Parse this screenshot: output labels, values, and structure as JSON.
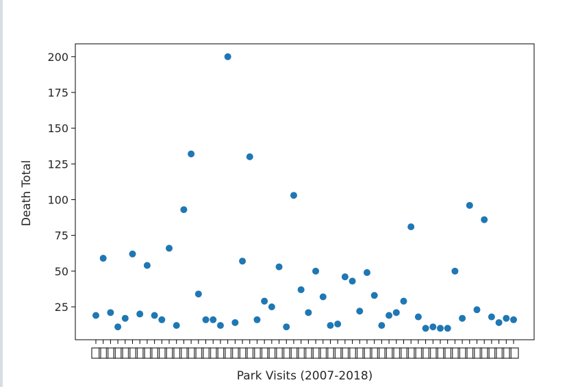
{
  "chart_data": {
    "type": "scatter",
    "xlabel": "Park Visits (2007-2018)",
    "ylabel": "Death Total",
    "ylim": [
      2,
      209
    ],
    "yticks": [
      25,
      50,
      75,
      100,
      125,
      150,
      175,
      200
    ],
    "grid": false,
    "color": "#1f77b4",
    "x_tick_labels_note": "x tick labels are overlapping and illegible",
    "values": [
      19,
      59,
      21,
      11,
      17,
      62,
      20,
      54,
      19,
      16,
      66,
      12,
      93,
      132,
      34,
      16,
      16,
      12,
      200,
      14,
      57,
      130,
      16,
      29,
      25,
      53,
      11,
      103,
      37,
      21,
      50,
      32,
      12,
      13,
      46,
      43,
      22,
      49,
      33,
      12,
      19,
      21,
      29,
      81,
      18,
      10,
      11,
      10,
      10,
      50,
      17,
      96,
      23,
      86,
      18,
      14,
      17,
      16
    ]
  }
}
